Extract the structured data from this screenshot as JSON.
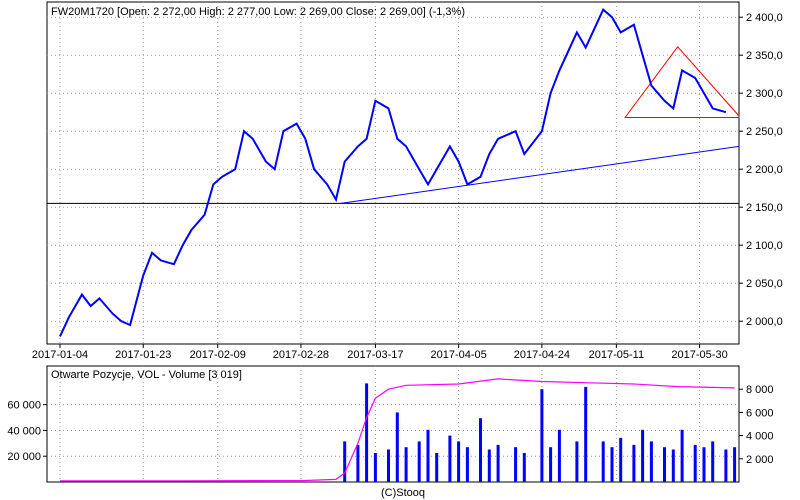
{
  "chart_data": [
    {
      "type": "line",
      "title": "FW20M1720 [Open: 2 272,00  High: 2 277,00  Low: 2 269,00  Close: 2 269,00] (-1,3%)",
      "y_axis_side": "right",
      "ylim": [
        1970,
        2420
      ],
      "yticks": [
        {
          "v": 2000,
          "label": "2 000,0"
        },
        {
          "v": 2050,
          "label": "2 050,0"
        },
        {
          "v": 2100,
          "label": "2 100,0"
        },
        {
          "v": 2150,
          "label": "2 150,0"
        },
        {
          "v": 2200,
          "label": "2 200,0"
        },
        {
          "v": 2250,
          "label": "2 250,0"
        },
        {
          "v": 2300,
          "label": "2 300,0"
        },
        {
          "v": 2350,
          "label": "2 350,0"
        },
        {
          "v": 2400,
          "label": "2 400,0"
        }
      ],
      "xlim": [
        "2017-01-04",
        "2017-06-08"
      ],
      "xticks": [
        "2017-01-04",
        "2017-01-23",
        "2017-02-09",
        "2017-02-28",
        "2017-03-17",
        "2017-04-05",
        "2017-04-24",
        "2017-05-11",
        "2017-05-30"
      ],
      "grid": true,
      "color": "#0000ff",
      "series": [
        {
          "x": [
            "2017-01-04",
            "2017-01-06",
            "2017-01-09",
            "2017-01-11",
            "2017-01-13",
            "2017-01-16",
            "2017-01-18",
            "2017-01-20",
            "2017-01-23",
            "2017-01-25",
            "2017-01-27",
            "2017-01-30",
            "2017-02-01",
            "2017-02-03",
            "2017-02-06",
            "2017-02-08",
            "2017-02-10",
            "2017-02-13",
            "2017-02-15",
            "2017-02-17",
            "2017-02-20",
            "2017-02-22",
            "2017-02-24",
            "2017-02-27",
            "2017-03-01",
            "2017-03-03",
            "2017-03-06",
            "2017-03-08",
            "2017-03-10",
            "2017-03-13",
            "2017-03-15",
            "2017-03-17",
            "2017-03-20",
            "2017-03-22",
            "2017-03-24",
            "2017-03-27",
            "2017-03-29",
            "2017-03-31",
            "2017-04-03",
            "2017-04-05",
            "2017-04-07",
            "2017-04-10",
            "2017-04-12",
            "2017-04-14",
            "2017-04-18",
            "2017-04-20",
            "2017-04-24",
            "2017-04-26",
            "2017-04-28",
            "2017-05-02",
            "2017-05-04",
            "2017-05-08",
            "2017-05-10",
            "2017-05-12",
            "2017-05-15",
            "2017-05-17",
            "2017-05-19",
            "2017-05-22",
            "2017-05-24",
            "2017-05-26",
            "2017-05-29",
            "2017-05-31",
            "2017-06-02",
            "2017-06-05"
          ],
          "values": [
            1980,
            2005,
            2035,
            2020,
            2030,
            2010,
            2000,
            1995,
            2060,
            2090,
            2080,
            2075,
            2100,
            2120,
            2140,
            2180,
            2190,
            2200,
            2250,
            2240,
            2210,
            2200,
            2250,
            2260,
            2240,
            2200,
            2180,
            2160,
            2210,
            2230,
            2240,
            2290,
            2280,
            2240,
            2230,
            2200,
            2180,
            2200,
            2230,
            2210,
            2180,
            2190,
            2220,
            2240,
            2250,
            2220,
            2250,
            2300,
            2330,
            2380,
            2360,
            2410,
            2400,
            2380,
            2390,
            2350,
            2310,
            2290,
            2280,
            2330,
            2320,
            2300,
            2280,
            2275
          ]
        }
      ],
      "annotations": [
        {
          "type": "hline",
          "y": 2155,
          "color": "#000000"
        },
        {
          "type": "line",
          "x1": "2017-03-09",
          "y1": 2155,
          "x2": "2017-06-08",
          "y2": 2230,
          "color": "#0000ff"
        },
        {
          "type": "polygon",
          "color": "#ff0000",
          "points": [
            [
              "2017-05-13",
              2268
            ],
            [
              "2017-05-25",
              2361
            ],
            [
              "2017-06-08",
              2270
            ],
            [
              "2017-06-08",
              2268
            ]
          ]
        }
      ]
    },
    {
      "type": "bar",
      "title": "Otwarte Pozycje, VOL - Volume [3 019]",
      "ylim_left": [
        0,
        90000
      ],
      "ylim_right": [
        0,
        10000
      ],
      "yticks_left": [
        {
          "v": 20000,
          "label": "20 000"
        },
        {
          "v": 40000,
          "label": "40 000"
        },
        {
          "v": 60000,
          "label": "60 000"
        }
      ],
      "yticks_right": [
        {
          "v": 2000,
          "label": "2 000"
        },
        {
          "v": 4000,
          "label": "4 000"
        },
        {
          "v": 6000,
          "label": "6 000"
        },
        {
          "v": 8000,
          "label": "8 000"
        }
      ],
      "bar_color": "#0000ff",
      "line_color": "#ff00ff",
      "series": [
        {
          "kind": "line",
          "axis": "left",
          "x": [
            "2017-01-04",
            "2017-02-01",
            "2017-03-01",
            "2017-03-08",
            "2017-03-10",
            "2017-03-13",
            "2017-03-15",
            "2017-03-17",
            "2017-03-20",
            "2017-03-24",
            "2017-04-05",
            "2017-04-14",
            "2017-04-24",
            "2017-05-05",
            "2017-05-15",
            "2017-05-25",
            "2017-06-07"
          ],
          "values": [
            900,
            950,
            1200,
            2000,
            7000,
            30000,
            50000,
            65000,
            72000,
            75000,
            76000,
            80000,
            78000,
            77000,
            76000,
            74000,
            73000
          ]
        },
        {
          "kind": "bar",
          "axis": "right",
          "x": [
            "2017-03-10",
            "2017-03-13",
            "2017-03-15",
            "2017-03-17",
            "2017-03-20",
            "2017-03-22",
            "2017-03-24",
            "2017-03-27",
            "2017-03-29",
            "2017-03-31",
            "2017-04-03",
            "2017-04-05",
            "2017-04-07",
            "2017-04-10",
            "2017-04-12",
            "2017-04-14",
            "2017-04-18",
            "2017-04-20",
            "2017-04-24",
            "2017-04-26",
            "2017-04-28",
            "2017-05-02",
            "2017-05-04",
            "2017-05-08",
            "2017-05-10",
            "2017-05-12",
            "2017-05-15",
            "2017-05-17",
            "2017-05-19",
            "2017-05-22",
            "2017-05-24",
            "2017-05-26",
            "2017-05-29",
            "2017-05-31",
            "2017-06-02",
            "2017-06-05",
            "2017-06-07"
          ],
          "values": [
            3500,
            3200,
            8500,
            2500,
            2800,
            6000,
            3000,
            3500,
            4500,
            2500,
            4000,
            3500,
            3000,
            5500,
            2800,
            3200,
            3000,
            2500,
            8000,
            3000,
            4500,
            3500,
            8200,
            3500,
            3000,
            3800,
            3200,
            4500,
            3500,
            3000,
            2800,
            4500,
            3200,
            3000,
            3500,
            2800,
            3000
          ]
        }
      ]
    }
  ],
  "footer": "(C)Stooq"
}
